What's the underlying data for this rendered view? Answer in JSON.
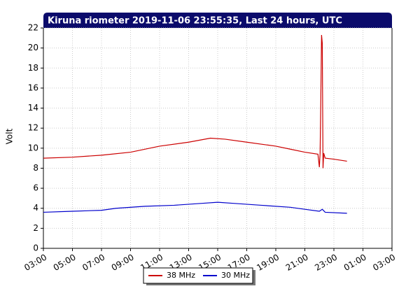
{
  "chart_data": {
    "type": "line",
    "title": "Kiruna riometer 2019-11-06 23:55:35, Last 24 hours, UTC",
    "y_label": "Volt",
    "xlim": [
      3,
      27
    ],
    "xticks": [
      {
        "value": 3,
        "label": "03:00"
      },
      {
        "value": 5,
        "label": "05:00"
      },
      {
        "value": 7,
        "label": "07:00"
      },
      {
        "value": 9,
        "label": "09:00"
      },
      {
        "value": 11,
        "label": "11:00"
      },
      {
        "value": 13,
        "label": "13:00"
      },
      {
        "value": 15,
        "label": "15:00"
      },
      {
        "value": 17,
        "label": "17:00"
      },
      {
        "value": 19,
        "label": "19:00"
      },
      {
        "value": 21,
        "label": "21:00"
      },
      {
        "value": 23,
        "label": "23:00"
      },
      {
        "value": 25,
        "label": "01:00"
      },
      {
        "value": 27,
        "label": "03:00"
      }
    ],
    "ylim": [
      0,
      22
    ],
    "yticks": [
      0,
      2,
      4,
      6,
      8,
      10,
      12,
      14,
      16,
      18,
      20,
      22
    ],
    "grid": true,
    "series": [
      {
        "name": "38 MHz",
        "color": "#cc0000",
        "x": [
          3,
          5,
          7,
          9,
          11,
          13,
          14.5,
          15.5,
          17,
          19,
          20,
          21,
          21.9,
          22.0,
          22.05,
          22.1,
          22.15,
          22.2,
          22.25,
          22.3,
          22.4,
          23,
          23.9
        ],
        "values": [
          9.0,
          9.1,
          9.3,
          9.6,
          10.2,
          10.6,
          11.0,
          10.9,
          10.6,
          10.2,
          9.9,
          9.6,
          9.4,
          8.1,
          9.5,
          15.0,
          21.3,
          20.5,
          8.0,
          9.5,
          9.0,
          8.9,
          8.7
        ]
      },
      {
        "name": "30 MHz",
        "color": "#0000cc",
        "x": [
          3,
          5,
          7,
          8,
          10,
          12,
          14,
          15,
          16,
          18,
          20,
          21,
          22,
          22.2,
          22.4,
          23.9
        ],
        "values": [
          3.6,
          3.7,
          3.8,
          4.0,
          4.2,
          4.3,
          4.5,
          4.6,
          4.5,
          4.3,
          4.1,
          3.9,
          3.7,
          3.9,
          3.6,
          3.5
        ]
      }
    ]
  }
}
